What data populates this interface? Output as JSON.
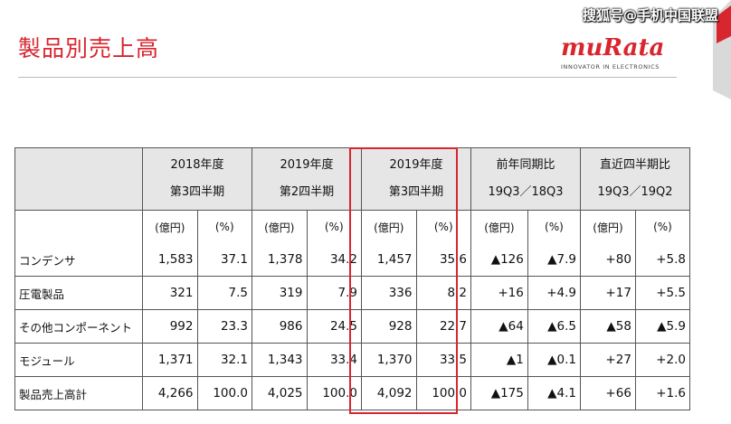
{
  "page": {
    "title": "製品別売上高"
  },
  "logo": {
    "word": "muRata",
    "tagline": "INNOVATOR IN ELECTRONICS"
  },
  "watermark": "搜狐号@手机中国联盟",
  "table": {
    "headers": [
      {
        "line1": "",
        "line2": ""
      },
      {
        "line1": "2018年度",
        "line2": "第3四半期"
      },
      {
        "line1": "2019年度",
        "line2": "第2四半期"
      },
      {
        "line1": "2019年度",
        "line2": "第3四半期"
      },
      {
        "line1": "前年同期比",
        "line2": "19Q3／18Q3"
      },
      {
        "line1": "直近四半期比",
        "line2": "19Q3／19Q2"
      }
    ],
    "units": [
      "(億円)",
      "(%)",
      "(億円)",
      "(%)",
      "(億円)",
      "(%)",
      "(億円)",
      "(%)",
      "(億円)",
      "(%)"
    ],
    "rows": [
      {
        "label": "コンデンサ",
        "cells": [
          "1,583",
          "37.1",
          "1,378",
          "34.2",
          "1,457",
          "35.6",
          "▲126",
          "▲7.9",
          "+80",
          "+5.8"
        ]
      },
      {
        "label": "圧電製品",
        "cells": [
          "321",
          "7.5",
          "319",
          "7.9",
          "336",
          "8.2",
          "+16",
          "+4.9",
          "+17",
          "+5.5"
        ]
      },
      {
        "label": "その他コンポーネント",
        "cells": [
          "992",
          "23.3",
          "986",
          "24.5",
          "928",
          "22.7",
          "▲64",
          "▲6.5",
          "▲58",
          "▲5.9"
        ]
      },
      {
        "label": "モジュール",
        "cells": [
          "1,371",
          "32.1",
          "1,343",
          "33.4",
          "1,370",
          "33.5",
          "▲1",
          "▲0.1",
          "+27",
          "+2.0"
        ]
      },
      {
        "label": "製品売上高計",
        "cells": [
          "4,266",
          "100.0",
          "4,025",
          "100.0",
          "4,092",
          "100.0",
          "▲175",
          "▲4.1",
          "+66",
          "+1.6"
        ]
      }
    ]
  }
}
